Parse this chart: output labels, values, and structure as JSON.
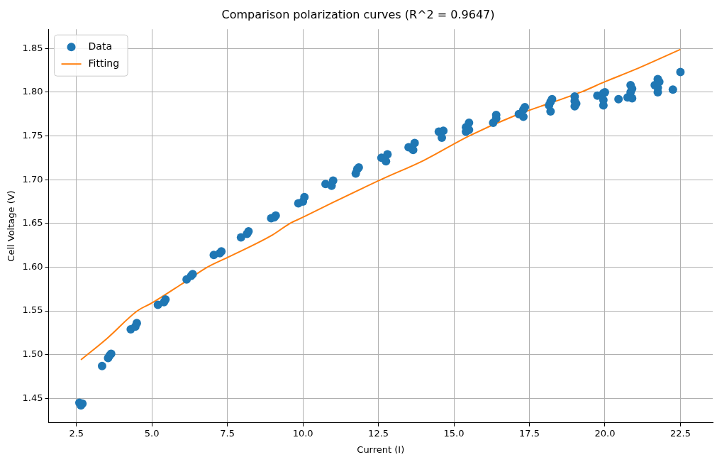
{
  "chart_data": {
    "type": "scatter",
    "title": "Comparison polarization curves (R^2 = 0.9647)",
    "xlabel": "Current (I)",
    "ylabel": "Cell Voltage (V)",
    "xlim": [
      1.58,
      23.57
    ],
    "ylim": [
      1.422,
      1.872
    ],
    "xticks": [
      {
        "value": 2.5,
        "label": "2.5"
      },
      {
        "value": 5,
        "label": "5.0"
      },
      {
        "value": 7.5,
        "label": "7.5"
      },
      {
        "value": 10,
        "label": "10.0"
      },
      {
        "value": 12.5,
        "label": "12.5"
      },
      {
        "value": 15,
        "label": "15.0"
      },
      {
        "value": 17.5,
        "label": "17.5"
      },
      {
        "value": 20,
        "label": "20.0"
      },
      {
        "value": 22.5,
        "label": "22.5"
      }
    ],
    "yticks": [
      1.45,
      {
        "value": 1.5,
        "label": "1.50"
      },
      1.55,
      {
        "value": 1.6,
        "label": "1.60"
      },
      1.65,
      {
        "value": 1.7,
        "label": "1.70"
      },
      1.75,
      {
        "value": 1.8,
        "label": "1.80"
      },
      1.85
    ],
    "grid": true,
    "legend": "top left",
    "series": [
      {
        "name": "Data",
        "type": "scatter",
        "marker": "circle",
        "color": "#1f77b4",
        "x": [
          2.6,
          2.65,
          2.7,
          3.35,
          3.55,
          3.6,
          3.65,
          4.3,
          4.45,
          4.5,
          5.2,
          5.4,
          5.45,
          6.15,
          6.3,
          6.35,
          7.05,
          7.25,
          7.3,
          7.95,
          8.15,
          8.2,
          8.95,
          9.05,
          9.1,
          9.85,
          10.0,
          10.05,
          10.75,
          10.95,
          11.0,
          11.75,
          11.8,
          11.85,
          12.6,
          12.75,
          12.8,
          13.5,
          13.65,
          13.7,
          14.5,
          14.6,
          14.65,
          15.4,
          15.4,
          15.5,
          15.5,
          16.3,
          16.4,
          16.4,
          17.15,
          17.3,
          17.3,
          17.35,
          18.15,
          18.2,
          18.2,
          18.25,
          19.0,
          19.0,
          19.0,
          19.05,
          19.75,
          19.95,
          19.95,
          19.95,
          20.0,
          20.45,
          20.75,
          20.85,
          20.85,
          20.9,
          20.9,
          21.65,
          21.75,
          21.75,
          21.75,
          21.8,
          22.25,
          22.5
        ],
        "values": [
          1.445,
          1.442,
          1.444,
          1.487,
          1.496,
          1.499,
          1.501,
          1.529,
          1.532,
          1.536,
          1.557,
          1.56,
          1.563,
          1.586,
          1.59,
          1.592,
          1.614,
          1.616,
          1.618,
          1.634,
          1.638,
          1.641,
          1.656,
          1.657,
          1.659,
          1.673,
          1.675,
          1.68,
          1.695,
          1.693,
          1.699,
          1.707,
          1.712,
          1.714,
          1.725,
          1.721,
          1.729,
          1.737,
          1.734,
          1.742,
          1.755,
          1.748,
          1.756,
          1.755,
          1.76,
          1.765,
          1.757,
          1.765,
          1.77,
          1.774,
          1.775,
          1.772,
          1.78,
          1.783,
          1.785,
          1.778,
          1.789,
          1.792,
          1.784,
          1.79,
          1.795,
          1.787,
          1.796,
          1.785,
          1.791,
          1.799,
          1.8,
          1.792,
          1.794,
          1.8,
          1.808,
          1.793,
          1.804,
          1.808,
          1.8,
          1.805,
          1.815,
          1.812,
          1.803,
          1.823
        ]
      },
      {
        "name": "Fitting",
        "type": "line",
        "marker": "none",
        "line_style": "solid",
        "color": "#ff7f0e",
        "x": [
          2.65,
          3.5,
          4.52,
          5,
          6,
          6.84,
          7.5,
          9,
          9.57,
          10,
          11,
          12.58,
          14,
          15.5,
          17,
          19.2,
          20,
          21,
          22.5
        ],
        "values": [
          1.494,
          1.518,
          1.55,
          1.559,
          1.581,
          1.6,
          1.611,
          1.637,
          1.65,
          1.657,
          1.674,
          1.7,
          1.722,
          1.75,
          1.773,
          1.8,
          1.812,
          1.826,
          1.849
        ]
      }
    ]
  }
}
